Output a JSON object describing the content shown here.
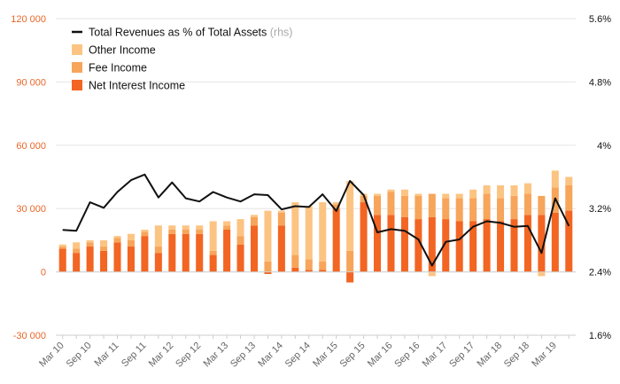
{
  "chart_data": {
    "type": "bar",
    "stacked": true,
    "categories": [
      "Mar 10",
      "Jun 10",
      "Sep 10",
      "Dec 10",
      "Mar 11",
      "Jun 11",
      "Sep 11",
      "Dec 11",
      "Mar 12",
      "Jun 12",
      "Sep 12",
      "Dec 12",
      "Mar 13",
      "Jun 13",
      "Sep 13",
      "Dec 13",
      "Mar 14",
      "Jun 14",
      "Sep 14",
      "Dec 14",
      "Mar 15",
      "Jun 15",
      "Sep 15",
      "Dec 15",
      "Mar 16",
      "Jun 16",
      "Sep 16",
      "Dec 16",
      "Mar 17",
      "Jun 17",
      "Sep 17",
      "Dec 17",
      "Mar 18",
      "Jun 18",
      "Sep 18",
      "Dec 18",
      "Mar 19",
      "Jun 19"
    ],
    "x_tick_labels": [
      "Mar 10",
      "Sep 10",
      "Mar 11",
      "Sep 11",
      "Mar 12",
      "Sep 12",
      "Mar 13",
      "Sep 13",
      "Mar 14",
      "Sep 14",
      "Mar 15",
      "Sep 15",
      "Mar 16",
      "Sep 16",
      "Mar 17",
      "Sep 17",
      "Mar 18",
      "Sep 18",
      "Mar 19"
    ],
    "series": [
      {
        "name": "Net Interest Income",
        "axis": "left",
        "color": "#f26522",
        "values": [
          11000,
          9000,
          12000,
          10000,
          14000,
          12000,
          17000,
          9000,
          18000,
          18000,
          18000,
          8000,
          20000,
          13000,
          22000,
          -1000,
          22000,
          2000,
          1000,
          1000,
          30000,
          -5000,
          33000,
          27000,
          27000,
          26000,
          25000,
          26000,
          25000,
          24000,
          24000,
          25000,
          24000,
          25000,
          27000,
          27000,
          28000,
          29000
        ]
      },
      {
        "name": "Fee Income",
        "axis": "left",
        "color": "#f7a55a",
        "values": [
          1000,
          2000,
          2000,
          2000,
          2000,
          3000,
          2000,
          3000,
          2000,
          2000,
          2000,
          2000,
          2000,
          4000,
          4000,
          5000,
          6000,
          6000,
          5000,
          4000,
          2000,
          10000,
          3000,
          9000,
          11000,
          10000,
          11000,
          11000,
          10000,
          11000,
          11000,
          12000,
          11000,
          11000,
          10000,
          9000,
          12000,
          12000
        ]
      },
      {
        "name": "Other Income",
        "axis": "left",
        "color": "#fcc482",
        "values": [
          1000,
          3000,
          1000,
          3000,
          1000,
          3000,
          1000,
          10000,
          2000,
          2000,
          2000,
          14000,
          2000,
          8000,
          1000,
          24000,
          1000,
          25000,
          25000,
          28000,
          1000,
          33000,
          1000,
          1000,
          1000,
          3000,
          1000,
          -2000,
          2000,
          2000,
          4000,
          4000,
          6000,
          5000,
          5000,
          -2000,
          8000,
          4000
        ]
      },
      {
        "name": "Total Revenues as % of Total Assets",
        "axis": "right",
        "type": "line",
        "color": "#111111",
        "values": [
          2.93,
          2.92,
          3.28,
          3.21,
          3.41,
          3.56,
          3.63,
          3.34,
          3.53,
          3.33,
          3.29,
          3.41,
          3.34,
          3.29,
          3.38,
          3.37,
          3.19,
          3.23,
          3.22,
          3.38,
          3.17,
          3.55,
          3.37,
          2.9,
          2.94,
          2.92,
          2.81,
          2.48,
          2.78,
          2.81,
          2.97,
          3.04,
          3.02,
          2.97,
          2.98,
          2.64,
          3.33,
          2.98
        ]
      }
    ],
    "legend": [
      {
        "label": "Total Revenues as % of Total Assets",
        "note": "(rhs)",
        "kind": "line",
        "color": "#111111"
      },
      {
        "label": "Other Income",
        "kind": "box",
        "color": "#fcc482"
      },
      {
        "label": "Fee Income",
        "kind": "box",
        "color": "#f7a55a"
      },
      {
        "label": "Net Interest Income",
        "kind": "box",
        "color": "#f26522"
      }
    ],
    "left_axis": {
      "ticks": [
        120000,
        90000,
        60000,
        30000,
        0,
        -30000
      ],
      "tick_labels": [
        "120 000",
        "90 000",
        "60 000",
        "30 000",
        "0",
        "-30 000"
      ],
      "range": [
        -30000,
        120000
      ]
    },
    "right_axis": {
      "ticks": [
        5.6,
        4.8,
        4.0,
        3.2,
        2.4,
        1.6
      ],
      "tick_labels": [
        "5.6%",
        "4.8%",
        "4%",
        "3.2%",
        "2.4%",
        "1.6%"
      ],
      "range": [
        1.6,
        5.6
      ]
    },
    "legend_position": "top-left",
    "grid": "horizontal",
    "title": "",
    "xlabel": "",
    "ylabel": ""
  }
}
